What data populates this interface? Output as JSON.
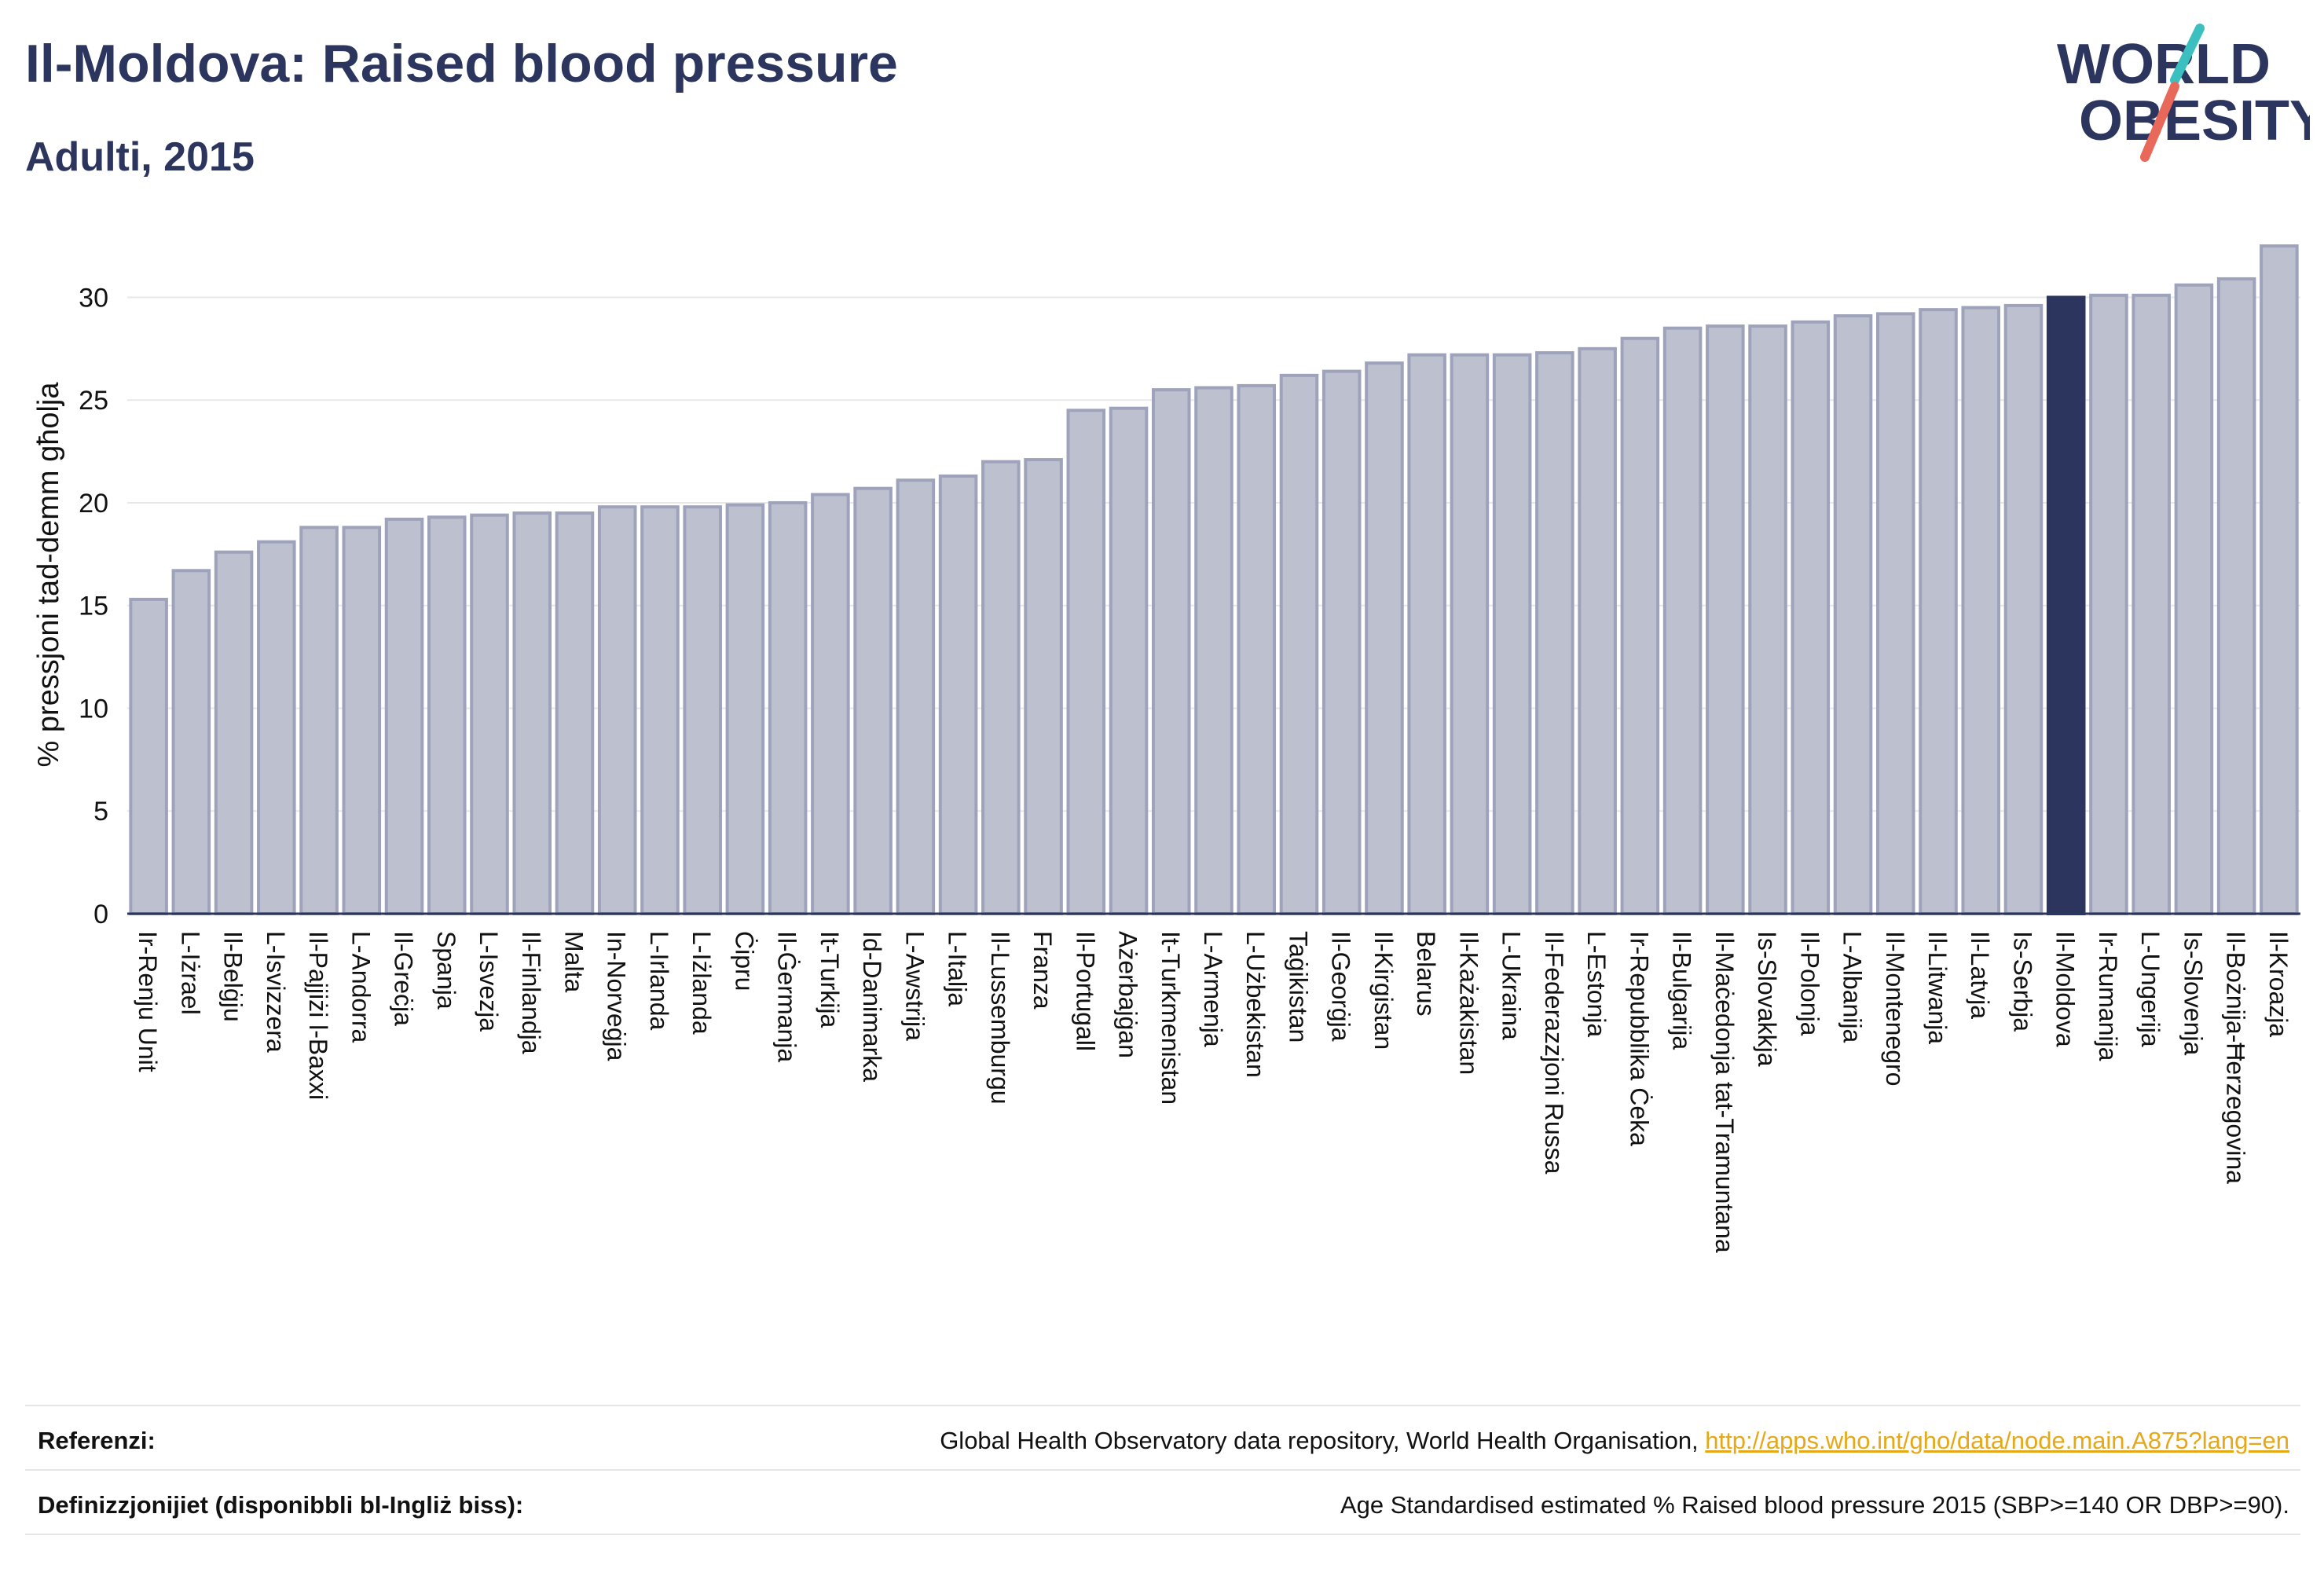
{
  "header": {
    "title": "Il-Moldova: Raised blood pressure",
    "subtitle": "Adulti, 2015"
  },
  "logo": {
    "line1": "WORLD",
    "line2": "OBESITY"
  },
  "colors": {
    "bar_fill": "#bcc0cf",
    "bar_stroke": "#9ea3bb",
    "highlight": "#2b355e",
    "grid": "#e8e8e8",
    "axis": "#2b355e",
    "logo_teal": "#3cbfbf",
    "logo_red": "#e8685a",
    "link": "#e6a817"
  },
  "chart_data": {
    "type": "bar",
    "ylabel": "% pressjoni tad-demm għolja",
    "ylim": [
      0,
      33
    ],
    "yticks": [
      0,
      5,
      10,
      15,
      20,
      25,
      30
    ],
    "grid": true,
    "highlight": "Il-Moldova",
    "categories": [
      "Ir-Renju Unit",
      "L-Iżrael",
      "Il-Belġju",
      "L-Isvizzera",
      "Il-Pajjiżi l-Baxxi",
      "L-Andorra",
      "Il-Greċja",
      "Spanja",
      "L-Isvezja",
      "Il-Finlandja",
      "Malta",
      "In-Norveġja",
      "L-Irlanda",
      "L-Iżlanda",
      "Ċipru",
      "Il-Ġermanja",
      "It-Turkija",
      "Id-Danimarka",
      "L-Awstrija",
      "L-Italja",
      "Il-Lussemburgu",
      "Franza",
      "Il-Portugall",
      "Ażerbajġan",
      "It-Turkmenistan",
      "L-Armenja",
      "L-Użbekistan",
      "Taġikistan",
      "Il-Georġja",
      "Il-Kirgistan",
      "Belarus",
      "Il-Każakistan",
      "L-Ukraina",
      "Il-Federazzjoni Russa",
      "L-Estonja",
      "Ir-Repubblika Ċeka",
      "Il-Bulgarija",
      "Il-Maċedonja tat-Tramuntana",
      "Is-Slovakkja",
      "Il-Polonja",
      "L-Albanija",
      "Il-Montenegro",
      "Il-Litwanja",
      "Il-Latvja",
      "Is-Serbja",
      "Il-Moldova",
      "Ir-Rumanija",
      "L-Ungerija",
      "Is-Slovenja",
      "Il-Bożnija-Ħerzegovina",
      "Il-Kroazja"
    ],
    "values": [
      15.3,
      16.7,
      17.6,
      18.1,
      18.8,
      18.8,
      19.2,
      19.3,
      19.4,
      19.5,
      19.5,
      19.8,
      19.8,
      19.8,
      19.9,
      20.0,
      20.4,
      20.7,
      21.1,
      21.3,
      22.0,
      22.1,
      24.5,
      24.6,
      25.5,
      25.6,
      25.7,
      26.2,
      26.4,
      26.8,
      27.2,
      27.2,
      27.2,
      27.3,
      27.5,
      28.0,
      28.5,
      28.6,
      28.6,
      28.8,
      29.1,
      29.2,
      29.4,
      29.5,
      29.6,
      30.0,
      30.1,
      30.1,
      30.6,
      30.9,
      32.5
    ]
  },
  "footer": {
    "references_label": "Referenzi:",
    "references_text": "Global Health Observatory data repository, World Health Organisation, ",
    "references_link": "http://apps.who.int/gho/data/node.main.A875?lang=en",
    "definitions_label": "Definizzjonijiet (disponibbli bl-Ingliż biss):",
    "definitions_text": "Age Standardised estimated % Raised blood pressure 2015 (SBP>=140 OR DBP>=90)."
  }
}
